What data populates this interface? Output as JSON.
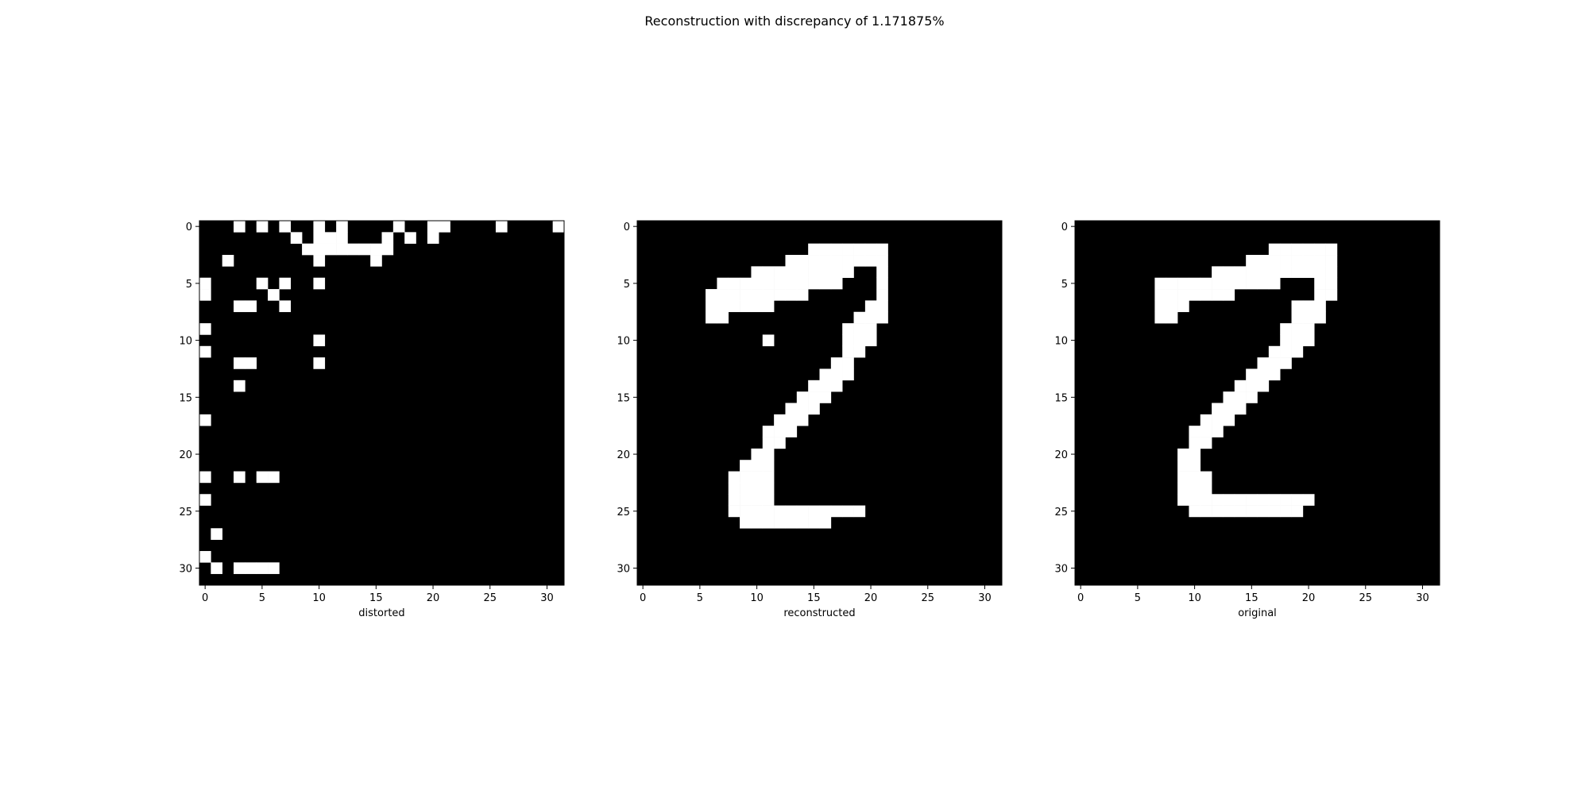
{
  "figure": {
    "title": "Reconstruction with discrepancy of 1.171875%"
  },
  "chart_data": [
    {
      "type": "heatmap",
      "xlabel": "distorted",
      "grid_size": 32,
      "xticks": [
        0,
        5,
        10,
        15,
        20,
        25,
        30
      ],
      "yticks": [
        0,
        5,
        10,
        15,
        20,
        25,
        30
      ],
      "colormap": {
        "0": "#000000",
        "1": "#ffffff"
      },
      "values": [
        "00010101001010000100110000100001",
        "00000000101110001010100000000000",
        "00000000011111111000000000000000",
        "00100000001000010000000000000000",
        "00000000000000000000000000000000",
        "10000101001000000000000000000000",
        "10000010000000000000000000000000",
        "00011001000000000000000000000000",
        "00000000000000000000000000000000",
        "10000000000000000000000000000000",
        "00000000001000000000000000000000",
        "10000000000000000000000000000000",
        "00011000001000000000000000000000",
        "00000000000000000000000000000000",
        "00010000000000000000000000000000",
        "00000000000000000000000000000000",
        "00000000000000000000000000000000",
        "10000000000000000000000000000000",
        "00000000000000000000000000000000",
        "00000000000000000000000000000000",
        "00000000000000000000000000000000",
        "00000000000000000000000000000000",
        "10010110000000000000000000000000",
        "00000000000000000000000000000000",
        "10000000000000000000000000000000",
        "00000000000000000000000000000000",
        "00000000000000000000000000000000",
        "01000000000000000000000000000000",
        "00000000000000000000000000000000",
        "10000000000000000000000000000000",
        "01011110000000000000000000000000",
        "00000000000000000000000000000000"
      ]
    },
    {
      "type": "heatmap",
      "xlabel": "reconstructed",
      "grid_size": 32,
      "xticks": [
        0,
        5,
        10,
        15,
        20,
        25,
        30
      ],
      "yticks": [
        0,
        5,
        10,
        15,
        20,
        25,
        30
      ],
      "colormap": {
        "0": "#000000",
        "1": "#ffffff"
      },
      "values": [
        "00000000000000000000000000000000",
        "00000000000000000000000000000000",
        "00000000000000011111110000000000",
        "00000000000001111111110000000000",
        "00000000001111111110010000000000",
        "00000001111111111100010000000000",
        "00000011111111100000010000000000",
        "00000011111100000000110000000000",
        "00000011000000000001110000000000",
        "00000000000000000011100000000000",
        "00000000000100000011100000000000",
        "00000000000000000011000000000000",
        "00000000000000000110000000000000",
        "00000000000000001110000000000000",
        "00000000000000011100000000000000",
        "00000000000000111000000000000000",
        "00000000000001110000000000000000",
        "00000000000011100000000000000000",
        "00000000000111000000000000000000",
        "00000000000110000000000000000000",
        "00000000001100000000000000000000",
        "00000000011100000000000000000000",
        "00000000111100000000000000000000",
        "00000000111100000000000000000000",
        "00000000111100000000000000000000",
        "00000000111111111111000000000000",
        "00000000011111111000000000000000",
        "00000000000000000000000000000000",
        "00000000000000000000000000000000",
        "00000000000000000000000000000000",
        "00000000000000000000000000000000",
        "00000000000000000000000000000000"
      ]
    },
    {
      "type": "heatmap",
      "xlabel": "original",
      "grid_size": 32,
      "xticks": [
        0,
        5,
        10,
        15,
        20,
        25,
        30
      ],
      "yticks": [
        0,
        5,
        10,
        15,
        20,
        25,
        30
      ],
      "colormap": {
        "0": "#000000",
        "1": "#ffffff"
      },
      "values": [
        "00000000000000000000000000000000",
        "00000000000000000000000000000000",
        "00000000000000000111111000000000",
        "00000000000000011111111000000000",
        "00000000000011111111111000000000",
        "00000001111111111100011000000000",
        "00000001111111000000011000000000",
        "00000001110000000001110000000000",
        "00000001100000000001110000000000",
        "00000000000000000011100000000000",
        "00000000000000000011100000000000",
        "00000000000000000111000000000000",
        "00000000000000001110000000000000",
        "00000000000000011100000000000000",
        "00000000000000111000000000000000",
        "00000000000001110000000000000000",
        "00000000000011100000000000000000",
        "00000000000111000000000000000000",
        "00000000001110000000000000000000",
        "00000000001100000000000000000000",
        "00000000011000000000000000000000",
        "00000000011000000000000000000000",
        "00000000011100000000000000000000",
        "00000000011100000000000000000000",
        "00000000011111111111100000000000",
        "00000000001111111111000000000000",
        "00000000000000000000000000000000",
        "00000000000000000000000000000000",
        "00000000000000000000000000000000",
        "00000000000000000000000000000000",
        "00000000000000000000000000000000",
        "00000000000000000000000000000000"
      ]
    }
  ]
}
